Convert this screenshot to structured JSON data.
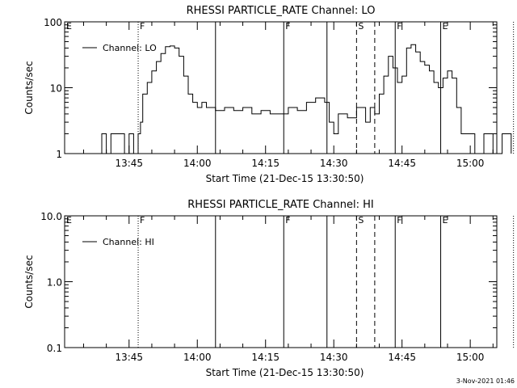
{
  "footer": {
    "timestamp": "3-Nov-2021 01:46"
  },
  "chart_data": [
    {
      "type": "line",
      "title": "RHESSI PARTICLE_RATE Channel: LO",
      "xlabel": "Start Time (21-Dec-15 13:30:50)",
      "ylabel": "Counts/sec",
      "yscale": "log",
      "ylim": [
        1,
        100
      ],
      "xlim_minutes_after_13_30_50": [
        0,
        95
      ],
      "yticks": [
        1,
        10,
        100
      ],
      "ytick_labels": [
        "1",
        "10",
        "100"
      ],
      "xticks": [
        "13:45",
        "14:00",
        "14:15",
        "14:30",
        "14:45",
        "15:00"
      ],
      "legend": {
        "label": "Channel: LO",
        "placement": "top-left"
      },
      "markers": [
        {
          "label": "E",
          "t": "13:30:50",
          "style": "none"
        },
        {
          "label": "F",
          "t": "13:47:00",
          "style": "dotted"
        },
        {
          "label": "",
          "t": "14:04:00",
          "style": "solid"
        },
        {
          "label": "F",
          "t": "14:19:00",
          "style": "solid"
        },
        {
          "label": "",
          "t": "14:28:30",
          "style": "solid"
        },
        {
          "label": "S",
          "t": "14:35:00",
          "style": "dashed"
        },
        {
          "label": "",
          "t": "14:39:00",
          "style": "dashed"
        },
        {
          "label": "F",
          "t": "14:43:30",
          "style": "solid"
        },
        {
          "label": "E",
          "t": "14:53:30",
          "style": "solid"
        },
        {
          "label": "",
          "t": "15:09:30",
          "style": "dotted"
        }
      ],
      "series": [
        {
          "name": "Channel: LO",
          "points": [
            [
              "13:38",
              1
            ],
            [
              "13:39",
              2
            ],
            [
              "13:40",
              1
            ],
            [
              "13:41",
              2
            ],
            [
              "13:43",
              2
            ],
            [
              "13:44",
              1
            ],
            [
              "13:45",
              2
            ],
            [
              "13:46",
              1
            ],
            [
              "13:47",
              2
            ],
            [
              "13:47:30",
              3
            ],
            [
              "13:48",
              8
            ],
            [
              "13:49",
              12
            ],
            [
              "13:50",
              18
            ],
            [
              "13:51",
              25
            ],
            [
              "13:52",
              33
            ],
            [
              "13:53",
              42
            ],
            [
              "13:54",
              43
            ],
            [
              "13:55",
              40
            ],
            [
              "13:56",
              30
            ],
            [
              "13:57",
              15
            ],
            [
              "13:58",
              8
            ],
            [
              "13:59",
              6
            ],
            [
              "14:00",
              5
            ],
            [
              "14:01",
              6
            ],
            [
              "14:02",
              5
            ],
            [
              "14:04",
              4.5
            ],
            [
              "14:06",
              5
            ],
            [
              "14:08",
              4.5
            ],
            [
              "14:10",
              5
            ],
            [
              "14:12",
              4
            ],
            [
              "14:14",
              4.5
            ],
            [
              "14:16",
              4
            ],
            [
              "14:18",
              4
            ],
            [
              "14:20",
              5
            ],
            [
              "14:22",
              4.5
            ],
            [
              "14:24",
              6
            ],
            [
              "14:26",
              7
            ],
            [
              "14:28",
              6
            ],
            [
              "14:29",
              3
            ],
            [
              "14:30",
              2
            ],
            [
              "14:31",
              4
            ],
            [
              "14:33",
              3.5
            ],
            [
              "14:35",
              5
            ],
            [
              "14:37",
              3
            ],
            [
              "14:38",
              5
            ],
            [
              "14:39",
              4
            ],
            [
              "14:40",
              8
            ],
            [
              "14:41",
              15
            ],
            [
              "14:42",
              30
            ],
            [
              "14:43",
              20
            ],
            [
              "14:44",
              12
            ],
            [
              "14:45",
              15
            ],
            [
              "14:46",
              40
            ],
            [
              "14:47",
              45
            ],
            [
              "14:48",
              35
            ],
            [
              "14:49",
              25
            ],
            [
              "14:50",
              22
            ],
            [
              "14:51",
              18
            ],
            [
              "14:52",
              12
            ],
            [
              "14:53",
              10
            ],
            [
              "14:54",
              14
            ],
            [
              "14:55",
              18
            ],
            [
              "14:56",
              14
            ],
            [
              "14:57",
              5
            ],
            [
              "14:58",
              2
            ],
            [
              "15:00",
              2
            ],
            [
              "15:01",
              1
            ],
            [
              "15:03",
              2
            ],
            [
              "15:05",
              1
            ],
            [
              "15:07",
              2
            ],
            [
              "15:09",
              1
            ]
          ]
        }
      ]
    },
    {
      "type": "line",
      "title": "RHESSI PARTICLE_RATE Channel: HI",
      "xlabel": "Start Time (21-Dec-15 13:30:50)",
      "ylabel": "Counts/sec",
      "yscale": "log",
      "ylim": [
        0.1,
        10
      ],
      "xlim_minutes_after_13_30_50": [
        0,
        95
      ],
      "yticks": [
        0.1,
        1,
        10
      ],
      "ytick_labels": [
        "0.1",
        "1.0",
        "10.0"
      ],
      "xticks": [
        "13:45",
        "14:00",
        "14:15",
        "14:30",
        "14:45",
        "15:00"
      ],
      "legend": {
        "label": "Channel: HI",
        "placement": "top-left"
      },
      "markers": [
        {
          "label": "E",
          "t": "13:30:50",
          "style": "none"
        },
        {
          "label": "F",
          "t": "13:47:00",
          "style": "dotted"
        },
        {
          "label": "",
          "t": "14:04:00",
          "style": "solid"
        },
        {
          "label": "F",
          "t": "14:19:00",
          "style": "solid"
        },
        {
          "label": "",
          "t": "14:28:30",
          "style": "solid"
        },
        {
          "label": "S",
          "t": "14:35:00",
          "style": "dashed"
        },
        {
          "label": "",
          "t": "14:39:00",
          "style": "dashed"
        },
        {
          "label": "F",
          "t": "14:43:30",
          "style": "solid"
        },
        {
          "label": "E",
          "t": "14:53:30",
          "style": "solid"
        },
        {
          "label": "",
          "t": "15:09:30",
          "style": "dotted"
        }
      ],
      "series": [
        {
          "name": "Channel: HI",
          "points": []
        }
      ]
    }
  ]
}
